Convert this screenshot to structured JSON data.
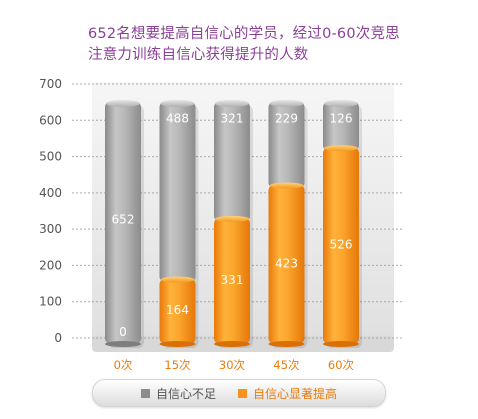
{
  "chart_data": {
    "type": "bar",
    "stacked": true,
    "title": "652名想要提高自信心的学员，经过0-60次竞思注意力训练自信心获得提升的人数",
    "title_lines": [
      "652名想要提高自信心的学员，经过0-60次竞思",
      "注意力训练自信心获得提升的人数"
    ],
    "categories": [
      "0次",
      "15次",
      "30次",
      "45次",
      "60次"
    ],
    "series": [
      {
        "name": "自信心显著提高",
        "color": "#f7931e",
        "values": [
          0,
          164,
          331,
          423,
          526
        ]
      },
      {
        "name": "自信心不足",
        "color": "#9e9e9e",
        "values": [
          652,
          488,
          321,
          229,
          126
        ]
      }
    ],
    "yticks": [
      "0",
      "100",
      "200",
      "300",
      "400",
      "500",
      "600",
      "700"
    ],
    "ylim": [
      0,
      700
    ],
    "grid": true,
    "legend_position": "bottom"
  }
}
